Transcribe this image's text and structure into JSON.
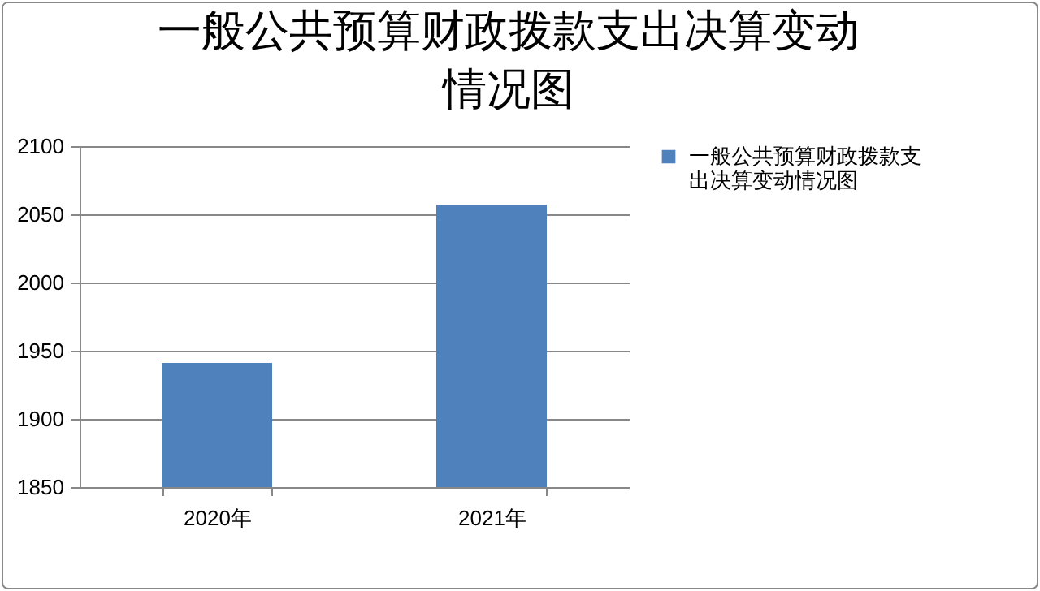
{
  "chart_data": {
    "type": "bar",
    "title": "一般公共预算财政拨款支出决算变动情况图",
    "categories": [
      "2020年",
      "2021年"
    ],
    "series": [
      {
        "name": "一般公共预算财政拨款支出决算变动情况图",
        "color": "#4f81bd",
        "values": [
          1941,
          2057
        ]
      }
    ],
    "ylim": [
      1850,
      2100
    ],
    "yticks": [
      1850,
      1900,
      1950,
      2000,
      2050,
      2100
    ],
    "grid": "y",
    "legend": "right"
  }
}
